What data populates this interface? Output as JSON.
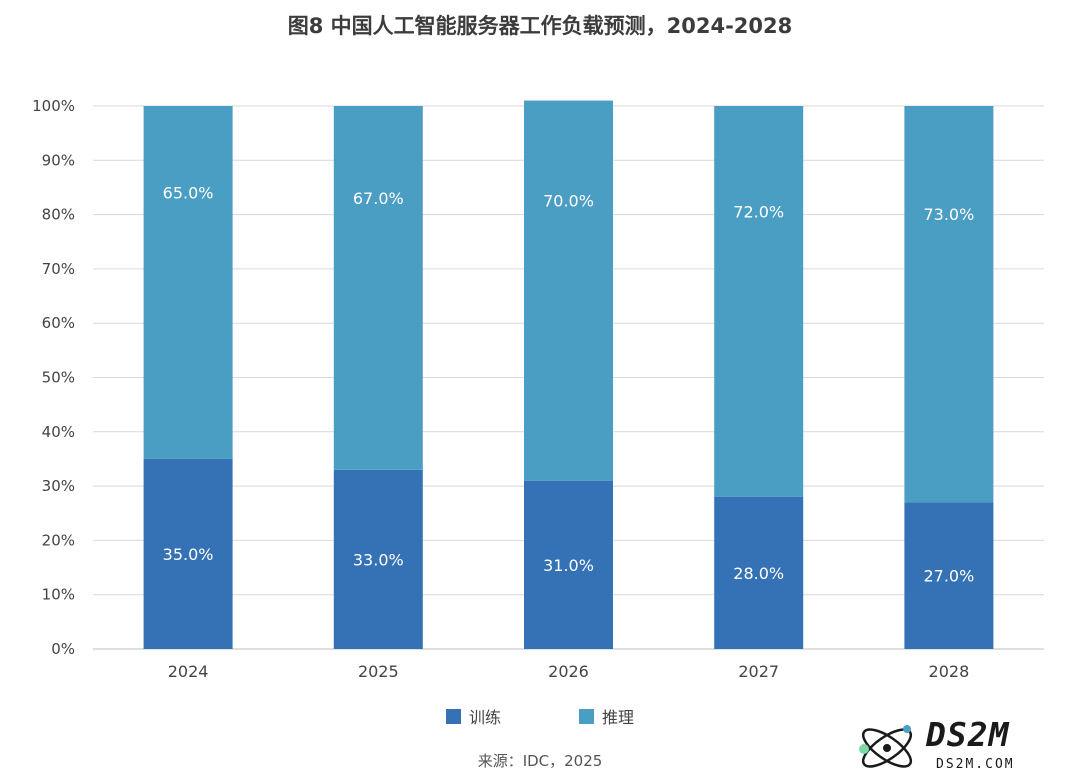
{
  "title": "图8 中国人工智能服务器工作负载预测，2024-2028",
  "source": "来源：IDC，2025",
  "watermark": {
    "main": "DS2M",
    "sub": "DS2M.COM"
  },
  "colors": {
    "training": "#3572b5",
    "inference": "#4a9ec4",
    "grid": "#d9d9d9",
    "axis": "#bfbfbf"
  },
  "chart_data": {
    "type": "bar",
    "stacked": true,
    "categories": [
      "2024",
      "2025",
      "2026",
      "2027",
      "2028"
    ],
    "series": [
      {
        "name": "训练",
        "values": [
          35.0,
          33.0,
          31.0,
          28.0,
          27.0
        ],
        "labels": [
          "35.0%",
          "33.0%",
          "31.0%",
          "28.0%",
          "27.0%"
        ]
      },
      {
        "name": "推理",
        "values": [
          65.0,
          67.0,
          70.0,
          72.0,
          73.0
        ],
        "labels": [
          "65.0%",
          "67.0%",
          "70.0%",
          "72.0%",
          "73.0%"
        ]
      }
    ],
    "ylim": [
      0,
      100
    ],
    "yticks": [
      "0%",
      "10%",
      "20%",
      "30%",
      "40%",
      "50%",
      "60%",
      "70%",
      "80%",
      "90%",
      "100%"
    ],
    "grid": true,
    "legend_position": "bottom"
  }
}
